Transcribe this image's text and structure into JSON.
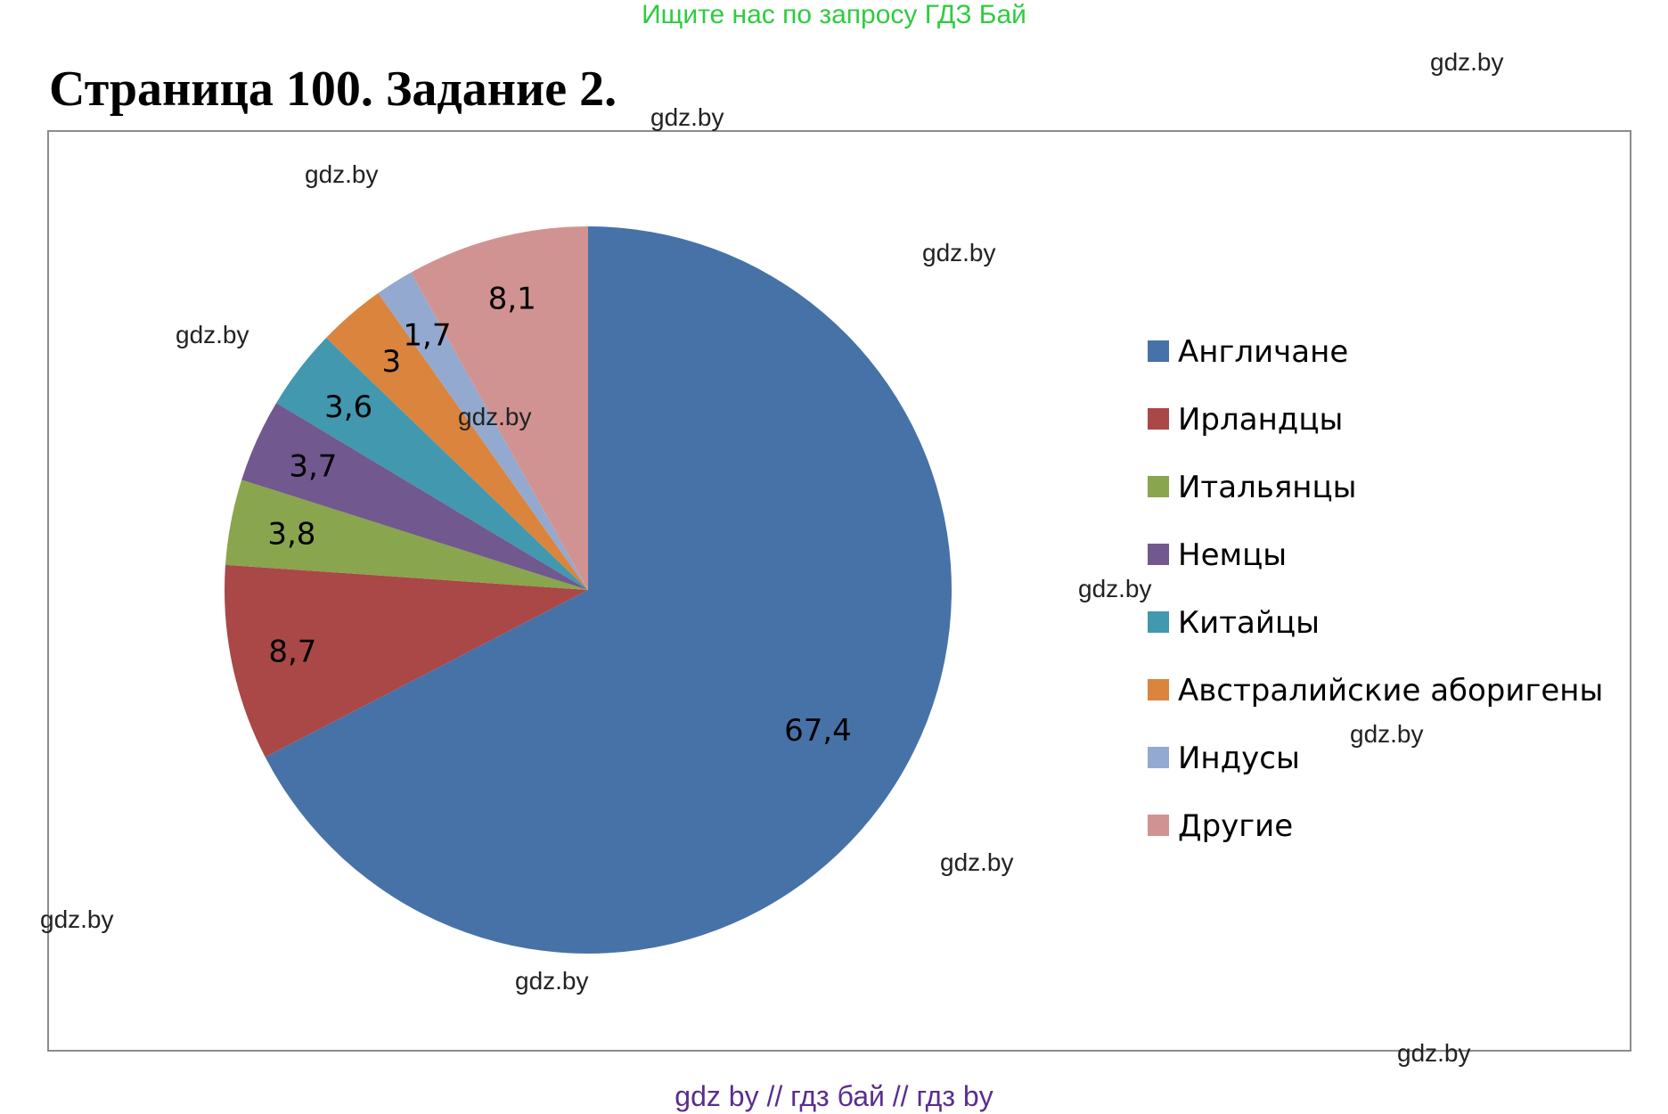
{
  "top_banner": "Ищите нас по запросу ГДЗ Бай",
  "page_title": "Страница 100. Задание 2.",
  "watermark": "gdz.by",
  "footer": "gdz by  //  гдз бай  //  гдз by",
  "chart_data": {
    "type": "pie",
    "title": "",
    "legend_position": "right",
    "slices": [
      {
        "name": "Англичане",
        "value": 67.4,
        "label": "67,4",
        "color": "#4672A8"
      },
      {
        "name": "Ирландцы",
        "value": 8.7,
        "label": "8,7",
        "color": "#A94846"
      },
      {
        "name": "Итальянцы",
        "value": 3.8,
        "label": "3,8",
        "color": "#89A54E"
      },
      {
        "name": "Немцы",
        "value": 3.7,
        "label": "3,7",
        "color": "#71588F"
      },
      {
        "name": "Китайцы",
        "value": 3.6,
        "label": "3,6",
        "color": "#4198AF"
      },
      {
        "name": "Австралийские аборигены",
        "value": 3.0,
        "label": "3",
        "color": "#DB843D"
      },
      {
        "name": "Индусы",
        "value": 1.7,
        "label": "1,7",
        "color": "#93A9CF"
      },
      {
        "name": "Другие",
        "value": 8.1,
        "label": "8,1",
        "color": "#D19392"
      }
    ]
  }
}
